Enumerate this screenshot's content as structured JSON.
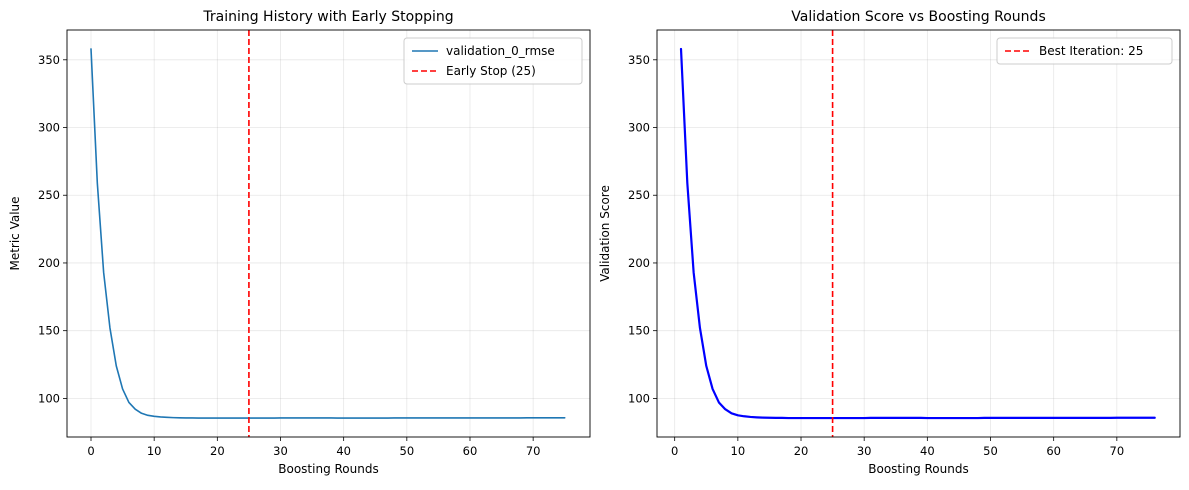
{
  "chart_data": [
    {
      "type": "line",
      "title": "Training History with Early Stopping",
      "xlabel": "Boosting Rounds",
      "ylabel": "Metric Value",
      "xlim": [
        -3.8,
        79
      ],
      "ylim": [
        71.5,
        372
      ],
      "xticks": [
        0,
        10,
        20,
        30,
        40,
        50,
        60,
        70
      ],
      "yticks": [
        100,
        150,
        200,
        250,
        300,
        350
      ],
      "grid": true,
      "legend": "top-right",
      "series": [
        {
          "name": "validation_0_rmse",
          "color": "#1f77b4",
          "x_start": 0,
          "x_step": 1,
          "values": [
            358,
            259,
            193,
            152,
            124,
            107,
            97,
            92,
            89,
            87.5,
            86.8,
            86.3,
            86.0,
            85.8,
            85.7,
            85.6,
            85.6,
            85.5,
            85.5,
            85.5,
            85.5,
            85.5,
            85.5,
            85.5,
            85.5,
            85.5,
            85.5,
            85.5,
            85.5,
            85.5,
            85.6,
            85.6,
            85.6,
            85.6,
            85.6,
            85.6,
            85.6,
            85.6,
            85.6,
            85.5,
            85.5,
            85.5,
            85.5,
            85.5,
            85.5,
            85.5,
            85.5,
            85.5,
            85.6,
            85.6,
            85.6,
            85.6,
            85.6,
            85.6,
            85.6,
            85.6,
            85.6,
            85.6,
            85.6,
            85.6,
            85.6,
            85.6,
            85.6,
            85.6,
            85.6,
            85.6,
            85.6,
            85.6,
            85.6,
            85.7,
            85.7,
            85.7,
            85.7,
            85.7,
            85.7,
            85.7
          ]
        }
      ],
      "vline": {
        "x": 25,
        "color": "#ff0000",
        "name": "Early Stop (25)"
      }
    },
    {
      "type": "line",
      "title": "Validation Score vs Boosting Rounds",
      "xlabel": "Boosting Rounds",
      "ylabel": "Validation Score",
      "xlim": [
        -2.8,
        80
      ],
      "ylim": [
        71.5,
        372
      ],
      "xticks": [
        0,
        10,
        20,
        30,
        40,
        50,
        60,
        70
      ],
      "yticks": [
        100,
        150,
        200,
        250,
        300,
        350
      ],
      "grid": true,
      "legend": "top-right",
      "series": [
        {
          "color": "#0000ff",
          "x_start": 1,
          "x_step": 1,
          "values": [
            358,
            259,
            193,
            152,
            124,
            107,
            97,
            92,
            89,
            87.5,
            86.8,
            86.3,
            86.0,
            85.8,
            85.7,
            85.6,
            85.6,
            85.5,
            85.5,
            85.5,
            85.5,
            85.5,
            85.5,
            85.5,
            85.5,
            85.5,
            85.5,
            85.5,
            85.5,
            85.5,
            85.6,
            85.6,
            85.6,
            85.6,
            85.6,
            85.6,
            85.6,
            85.6,
            85.6,
            85.5,
            85.5,
            85.5,
            85.5,
            85.5,
            85.5,
            85.5,
            85.5,
            85.5,
            85.6,
            85.6,
            85.6,
            85.6,
            85.6,
            85.6,
            85.6,
            85.6,
            85.6,
            85.6,
            85.6,
            85.6,
            85.6,
            85.6,
            85.6,
            85.6,
            85.6,
            85.6,
            85.6,
            85.6,
            85.6,
            85.7,
            85.7,
            85.7,
            85.7,
            85.7,
            85.7,
            85.7
          ]
        }
      ],
      "vline": {
        "x": 25,
        "color": "#ff0000",
        "name": "Best Iteration: 25"
      }
    }
  ]
}
